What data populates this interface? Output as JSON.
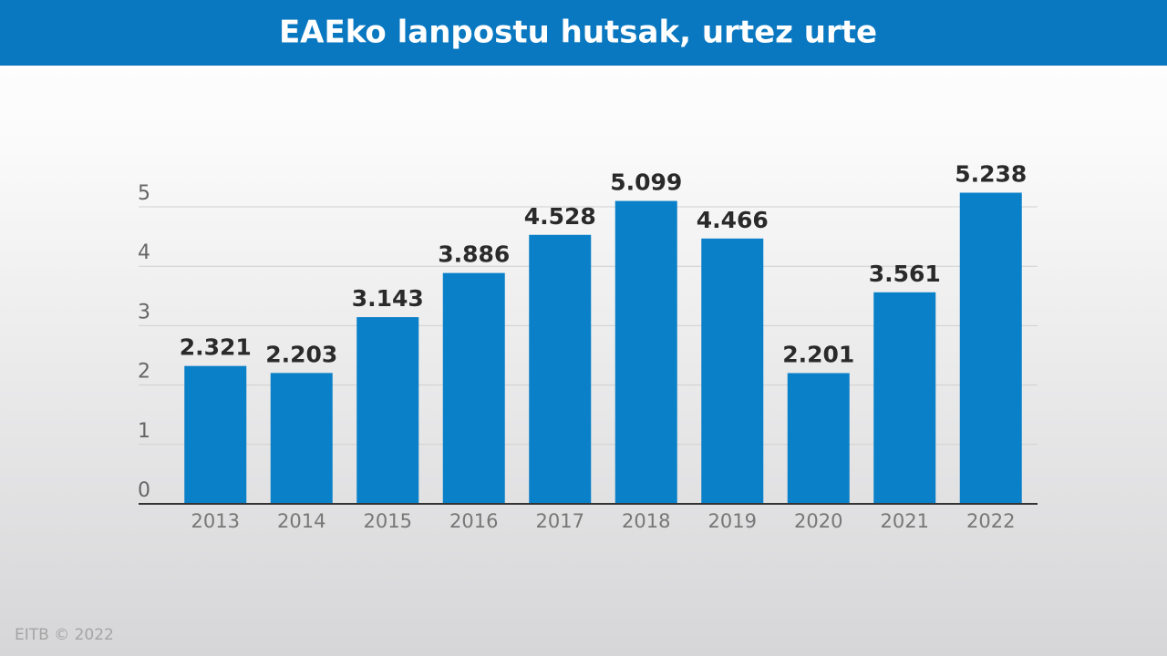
{
  "chart_data": {
    "type": "bar",
    "title": "EAEko lanpostu hutsak, urtez urte",
    "categories": [
      "2013",
      "2014",
      "2015",
      "2016",
      "2017",
      "2018",
      "2019",
      "2020",
      "2021",
      "2022"
    ],
    "values": [
      2.321,
      2.203,
      3.143,
      3.886,
      4.528,
      5.099,
      4.466,
      2.201,
      3.561,
      5.238
    ],
    "color": "#0a80c8",
    "ylim": [
      0,
      5
    ],
    "yticks": [
      0,
      1,
      2,
      3,
      4,
      5
    ],
    "grid": true,
    "source": "EITB © 2022"
  }
}
